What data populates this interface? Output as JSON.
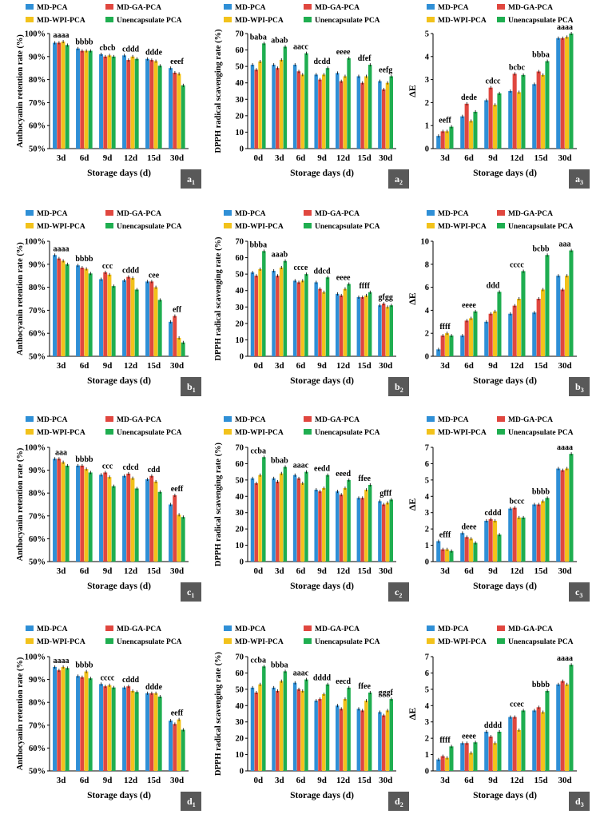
{
  "colors": {
    "MD-PCA": "#2f8fd6",
    "MD-GA-PCA": "#e0473f",
    "MD-WPI-PCA": "#f2c21b",
    "Unencapsulate PCA": "#1fae50",
    "panel_label_bg": "#595959"
  },
  "legend": [
    "MD-PCA",
    "MD-GA-PCA",
    "MD-WPI-PCA",
    "Unencapsulate PCA"
  ],
  "chart_data": [
    {
      "id": "a1",
      "type": "bar",
      "label_main": "a",
      "label_sub": "1",
      "xlabel": "Storage days (d)",
      "ylabel": "Anthocyanin retention rate (%)",
      "ylim": [
        50,
        100
      ],
      "yticks": [
        "50%",
        "60%",
        "70%",
        "80%",
        "90%",
        "100%"
      ],
      "categories": [
        "3d",
        "6d",
        "9d",
        "12d",
        "15d",
        "30d"
      ],
      "series": [
        {
          "name": "MD-PCA",
          "values": [
            96,
            93.5,
            91,
            90.5,
            89,
            85
          ]
        },
        {
          "name": "MD-GA-PCA",
          "values": [
            96,
            92.5,
            90,
            88.5,
            88.5,
            83
          ]
        },
        {
          "name": "MD-WPI-PCA",
          "values": [
            96.5,
            92.5,
            90.5,
            90,
            88,
            82.5
          ]
        },
        {
          "name": "Unencapsulate PCA",
          "values": [
            95,
            92.5,
            90,
            89,
            86,
            77.5
          ]
        }
      ],
      "annotations": [
        "aaaa",
        "bbbb",
        "cbcb",
        "cddd",
        "ddde",
        "eeef"
      ]
    },
    {
      "id": "a2",
      "type": "bar",
      "label_main": "a",
      "label_sub": "2",
      "xlabel": "Storage days (d)",
      "ylabel": "DPPH radical scavenging rate (%)",
      "ylim": [
        0,
        70
      ],
      "yticks": [
        "0",
        "10",
        "20",
        "30",
        "40",
        "50",
        "60",
        "70"
      ],
      "categories": [
        "0d",
        "3d",
        "6d",
        "9d",
        "12d",
        "15d",
        "30d"
      ],
      "series": [
        {
          "name": "MD-PCA",
          "values": [
            51,
            51,
            51,
            45,
            46,
            44,
            41
          ]
        },
        {
          "name": "MD-GA-PCA",
          "values": [
            48,
            49,
            47,
            42,
            41,
            40,
            36
          ]
        },
        {
          "name": "MD-WPI-PCA",
          "values": [
            53,
            54,
            45,
            45,
            44,
            44,
            40
          ]
        },
        {
          "name": "Unencapsulate PCA",
          "values": [
            64,
            62,
            58,
            49,
            55,
            51,
            44
          ]
        }
      ],
      "annotations": [
        "baba",
        "abab",
        "aacc",
        "dcdd",
        "eeee",
        "dfef",
        "eefg"
      ]
    },
    {
      "id": "a3",
      "type": "bar",
      "label_main": "a",
      "label_sub": "3",
      "xlabel": "Storage days (d)",
      "ylabel": "ΔE",
      "ylim": [
        0,
        5
      ],
      "yticks": [
        "0",
        "1",
        "2",
        "3",
        "4",
        "5"
      ],
      "categories": [
        "3d",
        "6d",
        "9d",
        "12d",
        "15d",
        "30d"
      ],
      "series": [
        {
          "name": "MD-PCA",
          "values": [
            0.55,
            1.4,
            2.1,
            2.5,
            2.8,
            4.8
          ]
        },
        {
          "name": "MD-GA-PCA",
          "values": [
            0.75,
            1.95,
            2.65,
            3.25,
            3.35,
            4.8
          ]
        },
        {
          "name": "MD-WPI-PCA",
          "values": [
            0.75,
            1.2,
            1.9,
            2.45,
            3.2,
            4.85
          ]
        },
        {
          "name": "Unencapsulate PCA",
          "values": [
            0.95,
            1.6,
            2.4,
            3.2,
            3.8,
            5.0
          ]
        }
      ],
      "annotations": [
        "eeff",
        "dede",
        "cdcc",
        "bcbc",
        "bbba",
        "aaaa"
      ]
    },
    {
      "id": "b1",
      "type": "bar",
      "label_main": "b",
      "label_sub": "1",
      "xlabel": "Storage days (d)",
      "ylabel": "Anthocyanin retention rate (%)",
      "ylim": [
        50,
        100
      ],
      "yticks": [
        "50%",
        "60%",
        "70%",
        "80%",
        "90%",
        "100%"
      ],
      "categories": [
        "3d",
        "6d",
        "9d",
        "12d",
        "15d",
        "30d"
      ],
      "series": [
        {
          "name": "MD-PCA",
          "values": [
            94,
            89.5,
            83.5,
            83,
            82.5,
            65
          ]
        },
        {
          "name": "MD-GA-PCA",
          "values": [
            92.5,
            88.5,
            86.5,
            84.5,
            82.5,
            67.5
          ]
        },
        {
          "name": "MD-WPI-PCA",
          "values": [
            91.5,
            88,
            85.5,
            84,
            80,
            58
          ]
        },
        {
          "name": "Unencapsulate PCA",
          "values": [
            90,
            86,
            80.5,
            79,
            74.5,
            56
          ]
        }
      ],
      "annotations": [
        "aaaa",
        "bbbb",
        "ccc",
        "cddd",
        "cee",
        "eff"
      ]
    },
    {
      "id": "b2",
      "type": "bar",
      "label_main": "b",
      "label_sub": "2",
      "xlabel": "Storage days (d)",
      "ylabel": "DPPH radical scavenging rate (%)",
      "ylim": [
        0,
        70
      ],
      "yticks": [
        "0",
        "10",
        "20",
        "30",
        "40",
        "50",
        "60",
        "70"
      ],
      "categories": [
        "0d",
        "3d",
        "6d",
        "9d",
        "12d",
        "15d",
        "30d"
      ],
      "series": [
        {
          "name": "MD-PCA",
          "values": [
            51,
            52,
            46,
            45,
            38,
            36,
            31
          ]
        },
        {
          "name": "MD-GA-PCA",
          "values": [
            49,
            49,
            45,
            41,
            37,
            36,
            32
          ]
        },
        {
          "name": "MD-WPI-PCA",
          "values": [
            53,
            54,
            46,
            39,
            41,
            37,
            30
          ]
        },
        {
          "name": "Unencapsulate PCA",
          "values": [
            64,
            58,
            50,
            48,
            44,
            39,
            31
          ]
        }
      ],
      "annotations": [
        "bbba",
        "aaab",
        "ccce",
        "ddcd",
        "eeee",
        "ffff",
        "gfgg"
      ]
    },
    {
      "id": "b3",
      "type": "bar",
      "label_main": "b",
      "label_sub": "3",
      "xlabel": "Storage days (d)",
      "ylabel": "ΔE",
      "ylim": [
        0,
        10
      ],
      "yticks": [
        "0",
        "2",
        "4",
        "6",
        "8",
        "10"
      ],
      "categories": [
        "3d",
        "6d",
        "9d",
        "12d",
        "15d",
        "30d"
      ],
      "series": [
        {
          "name": "MD-PCA",
          "values": [
            0.6,
            1.8,
            3.0,
            3.7,
            3.8,
            7.0
          ]
        },
        {
          "name": "MD-GA-PCA",
          "values": [
            1.8,
            3.1,
            3.7,
            4.4,
            5.0,
            5.8
          ]
        },
        {
          "name": "MD-WPI-PCA",
          "values": [
            2.0,
            3.3,
            3.9,
            5.0,
            5.8,
            7.0
          ]
        },
        {
          "name": "Unencapsulate PCA",
          "values": [
            1.8,
            3.9,
            5.6,
            7.4,
            8.8,
            9.2
          ]
        }
      ],
      "annotations": [
        "ffff",
        "eeee",
        "ddd",
        "cccc",
        "bcbb",
        "aaa"
      ]
    },
    {
      "id": "c1",
      "type": "bar",
      "label_main": "c",
      "label_sub": "1",
      "xlabel": "Storage days (d)",
      "ylabel": "Anthocyanin retention rate (%)",
      "ylim": [
        50,
        100
      ],
      "yticks": [
        "50%",
        "60%",
        "70%",
        "80%",
        "90%",
        "100%"
      ],
      "categories": [
        "3d",
        "6d",
        "9d",
        "12d",
        "15d",
        "30d"
      ],
      "series": [
        {
          "name": "MD-PCA",
          "values": [
            95,
            92,
            88,
            87.5,
            86,
            75
          ]
        },
        {
          "name": "MD-GA-PCA",
          "values": [
            95,
            92,
            89,
            88.5,
            87.5,
            79
          ]
        },
        {
          "name": "MD-WPI-PCA",
          "values": [
            93.5,
            90.5,
            87,
            86.5,
            85,
            70.5
          ]
        },
        {
          "name": "Unencapsulate PCA",
          "values": [
            92,
            89,
            83,
            82,
            80.5,
            69.5
          ]
        }
      ],
      "annotations": [
        "aaa",
        "bbbb",
        "ccc",
        "cdcd",
        "cdd",
        "eeff"
      ]
    },
    {
      "id": "c2",
      "type": "bar",
      "label_main": "c",
      "label_sub": "2",
      "xlabel": "Storage days (d)",
      "ylabel": "DPPH radical scavenging rate (%)",
      "ylim": [
        0,
        70
      ],
      "yticks": [
        "0",
        "10",
        "20",
        "30",
        "40",
        "50",
        "60",
        "70"
      ],
      "categories": [
        "0d",
        "3d",
        "6d",
        "9d",
        "12d",
        "15d",
        "30d"
      ],
      "series": [
        {
          "name": "MD-PCA",
          "values": [
            51,
            51,
            53,
            44,
            43,
            39,
            37
          ]
        },
        {
          "name": "MD-GA-PCA",
          "values": [
            48,
            49,
            51,
            43,
            41,
            39,
            35
          ]
        },
        {
          "name": "MD-WPI-PCA",
          "values": [
            53,
            54,
            48,
            45,
            45,
            44,
            36
          ]
        },
        {
          "name": "Unencapsulate PCA",
          "values": [
            64,
            58,
            55,
            53,
            50,
            47,
            38
          ]
        }
      ],
      "annotations": [
        "ccba",
        "bbab",
        "aaac",
        "eedd",
        "eeed",
        "ffee",
        "gfff"
      ]
    },
    {
      "id": "c3",
      "type": "bar",
      "label_main": "c",
      "label_sub": "3",
      "xlabel": "Storage days (d)",
      "ylabel": "ΔE",
      "ylim": [
        0,
        7
      ],
      "yticks": [
        "0",
        "1",
        "2",
        "3",
        "4",
        "5",
        "6",
        "7"
      ],
      "categories": [
        "3d",
        "6d",
        "9d",
        "12d",
        "15d",
        "30d"
      ],
      "series": [
        {
          "name": "MD-PCA",
          "values": [
            1.25,
            1.75,
            2.5,
            3.25,
            3.5,
            5.7
          ]
        },
        {
          "name": "MD-GA-PCA",
          "values": [
            0.75,
            1.5,
            2.6,
            3.3,
            3.5,
            5.6
          ]
        },
        {
          "name": "MD-WPI-PCA",
          "values": [
            0.75,
            1.4,
            2.5,
            2.7,
            3.7,
            5.7
          ]
        },
        {
          "name": "Unencapsulate PCA",
          "values": [
            0.65,
            1.15,
            1.65,
            2.7,
            3.9,
            6.6
          ]
        }
      ],
      "annotations": [
        "efff",
        "deee",
        "cddd",
        "bccc",
        "bbbb",
        "aaaa"
      ]
    },
    {
      "id": "d1",
      "type": "bar",
      "label_main": "d",
      "label_sub": "1",
      "xlabel": "Storage days (d)",
      "ylabel": "Anthocyanin retention rate (%)",
      "ylim": [
        50,
        100
      ],
      "yticks": [
        "50%",
        "60%",
        "70%",
        "80%",
        "90%",
        "100%"
      ],
      "categories": [
        "3d",
        "6d",
        "9d",
        "12d",
        "15d",
        "30d"
      ],
      "series": [
        {
          "name": "MD-PCA",
          "values": [
            95.5,
            91.5,
            88,
            86.5,
            84,
            72
          ]
        },
        {
          "name": "MD-GA-PCA",
          "values": [
            94,
            91,
            87,
            87,
            84,
            70.5
          ]
        },
        {
          "name": "MD-WPI-PCA",
          "values": [
            95.5,
            93.5,
            87.5,
            85,
            84,
            72.5
          ]
        },
        {
          "name": "Unencapsulate PCA",
          "values": [
            95,
            90.5,
            86.5,
            84.5,
            82.5,
            68
          ]
        }
      ],
      "annotations": [
        "aaaa",
        "bbbb",
        "cccc",
        "cddd",
        "ddde",
        "eeff"
      ]
    },
    {
      "id": "d2",
      "type": "bar",
      "label_main": "d",
      "label_sub": "2",
      "xlabel": "Storage days (d)",
      "ylabel": "DPPH radical scavenging rate (%)",
      "ylim": [
        0,
        70
      ],
      "yticks": [
        "0",
        "10",
        "20",
        "30",
        "40",
        "50",
        "60",
        "70"
      ],
      "categories": [
        "0d",
        "3d",
        "6d",
        "9d",
        "12d",
        "15d",
        "30d"
      ],
      "series": [
        {
          "name": "MD-PCA",
          "values": [
            51,
            51,
            54,
            43,
            40,
            38,
            36
          ]
        },
        {
          "name": "MD-GA-PCA",
          "values": [
            48,
            49,
            50,
            44,
            38,
            37,
            34
          ]
        },
        {
          "name": "MD-WPI-PCA",
          "values": [
            53,
            55,
            49,
            47,
            44,
            43,
            37
          ]
        },
        {
          "name": "Unencapsulate PCA",
          "values": [
            64,
            61,
            56,
            53,
            51,
            48,
            44
          ]
        }
      ],
      "annotations": [
        "ccba",
        "bbba",
        "aaac",
        "dddd",
        "eecd",
        "ffee",
        "gggf"
      ]
    },
    {
      "id": "d3",
      "type": "bar",
      "label_main": "d",
      "label_sub": "3",
      "xlabel": "Storage days (d)",
      "ylabel": "ΔE",
      "ylim": [
        0,
        7
      ],
      "yticks": [
        "0",
        "1",
        "2",
        "3",
        "4",
        "5",
        "6",
        "7"
      ],
      "categories": [
        "3d",
        "6d",
        "9d",
        "12d",
        "15d",
        "30d"
      ],
      "series": [
        {
          "name": "MD-PCA",
          "values": [
            0.7,
            1.7,
            2.4,
            3.3,
            3.7,
            5.3
          ]
        },
        {
          "name": "MD-GA-PCA",
          "values": [
            0.9,
            1.7,
            2.1,
            3.3,
            3.9,
            5.5
          ]
        },
        {
          "name": "MD-WPI-PCA",
          "values": [
            0.8,
            1.1,
            1.7,
            2.5,
            3.6,
            5.3
          ]
        },
        {
          "name": "Unencapsulate PCA",
          "values": [
            1.5,
            1.75,
            2.4,
            3.7,
            4.9,
            6.5
          ]
        }
      ],
      "annotations": [
        "ffff",
        "eeee",
        "dddd",
        "ccec",
        "bbbb",
        "aaaa"
      ]
    }
  ]
}
